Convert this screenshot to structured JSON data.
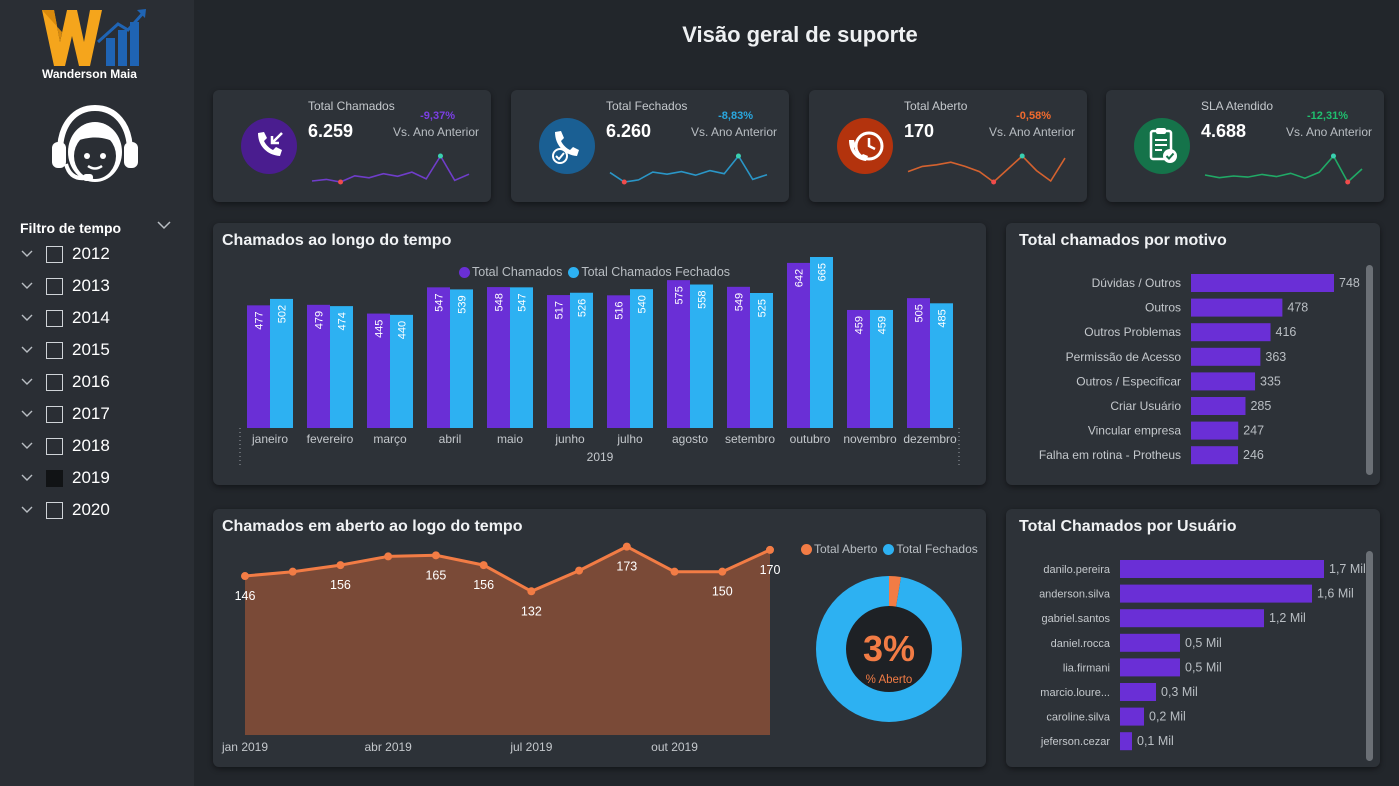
{
  "header": {
    "title": "Visão geral de suporte"
  },
  "brand": {
    "logo_text": "Wanderson Maia",
    "logo_icon": "wm-logo-icon",
    "agent_icon": "support-agent-icon"
  },
  "filter": {
    "title": "Filtro de tempo",
    "years": [
      {
        "label": "2012",
        "checked": false
      },
      {
        "label": "2013",
        "checked": false
      },
      {
        "label": "2014",
        "checked": false
      },
      {
        "label": "2015",
        "checked": false
      },
      {
        "label": "2016",
        "checked": false
      },
      {
        "label": "2017",
        "checked": false
      },
      {
        "label": "2018",
        "checked": false
      },
      {
        "label": "2019",
        "checked": true
      },
      {
        "label": "2020",
        "checked": false
      }
    ]
  },
  "kpis": [
    {
      "label": "Total Chamados",
      "value": "6.259",
      "delta": "-9,37%",
      "vs": "Vs. Ano Anterior",
      "icon": "phone-incoming-icon",
      "color": "#7b3fe4",
      "icon_bg": "#4a1d8f",
      "trend": [
        3.2,
        3.5,
        3.0,
        4.2,
        3.8,
        4.6,
        4.1,
        4.9,
        3.6,
        8.0,
        3.3,
        4.5
      ]
    },
    {
      "label": "Total Fechados",
      "value": "6.260",
      "delta": "-8,83%",
      "vs": "Vs. Ano Anterior",
      "icon": "phone-check-icon",
      "color": "#2aa8e0",
      "icon_bg": "#1a5f93",
      "trend": [
        4.8,
        3.0,
        3.4,
        4.9,
        4.5,
        5.0,
        4.3,
        5.2,
        4.6,
        8.0,
        3.5,
        4.4
      ]
    },
    {
      "label": "Total Aberto",
      "value": "170",
      "delta": "-0,58%",
      "vs": "Vs. Ano Anterior",
      "icon": "clock-phone-icon",
      "color": "#f26b2e",
      "icon_bg": "#b3330d",
      "trend": [
        5.0,
        6.0,
        6.3,
        6.8,
        6.0,
        5.0,
        3.0,
        5.5,
        8.0,
        5.2,
        3.2,
        7.6
      ]
    },
    {
      "label": "SLA Atendido",
      "value": "4.688",
      "delta": "-12,31%",
      "vs": "Vs. Ano Anterior",
      "icon": "clipboard-check-icon",
      "color": "#1fbf6e",
      "icon_bg": "#15734a",
      "trend": [
        4.5,
        4.0,
        4.3,
        4.1,
        4.6,
        4.2,
        4.8,
        3.9,
        5.0,
        8.0,
        3.2,
        5.6
      ]
    }
  ],
  "chart_data": [
    {
      "id": "chamados-tempo",
      "type": "bar",
      "title": "Chamados ao longo do tempo",
      "categories": [
        "janeiro",
        "fevereiro",
        "março",
        "abril",
        "maio",
        "junho",
        "julho",
        "agosto",
        "setembro",
        "outubro",
        "novembro",
        "dezembro"
      ],
      "x_group_label": "2019",
      "series": [
        {
          "name": "Total Chamados",
          "color": "#6a2fd6",
          "values": [
            477,
            479,
            445,
            547,
            548,
            517,
            516,
            575,
            549,
            642,
            459,
            505
          ]
        },
        {
          "name": "Total Chamados Fechados",
          "color": "#2db1f2",
          "values": [
            502,
            474,
            440,
            539,
            547,
            526,
            540,
            558,
            525,
            665,
            459,
            485
          ]
        }
      ],
      "ylim": [
        0,
        700
      ],
      "legend": "top-center"
    },
    {
      "id": "chamados-motivo",
      "type": "bar",
      "orientation": "horizontal",
      "title": "Total chamados por motivo",
      "color": "#6a2fd6",
      "categories": [
        "Dúvidas / Outros",
        "Outros",
        "Outros Problemas",
        "Permissão de Acesso",
        "Outros / Especificar",
        "Criar Usuário",
        "Vincular empresa",
        "Falha em rotina - Protheus"
      ],
      "values": [
        748,
        478,
        416,
        363,
        335,
        285,
        247,
        246
      ],
      "max": 748
    },
    {
      "id": "aberto-tempo",
      "type": "area",
      "title": "Chamados em aberto ao logo do tempo",
      "color": "#f27c45",
      "fill": "#7a4a37",
      "x": [
        "jan 2019",
        "fev 2019",
        "mar 2019",
        "abr 2019",
        "mai 2019",
        "jun 2019",
        "jul 2019",
        "ago 2019",
        "set 2019",
        "out 2019",
        "nov 2019",
        "dez 2019"
      ],
      "xticks": [
        "jan 2019",
        "abr 2019",
        "jul 2019",
        "out 2019"
      ],
      "values": [
        146,
        150,
        156,
        164,
        165,
        156,
        132,
        151,
        173,
        150,
        150,
        170
      ],
      "labels": [
        "146",
        "",
        "156",
        "",
        "165",
        "156",
        "132",
        "",
        "173",
        "",
        "150",
        "170"
      ],
      "ylim": [
        0,
        180
      ],
      "legend": "top-right"
    },
    {
      "id": "pct-aberto",
      "type": "pie",
      "style": "donut",
      "series": [
        {
          "name": "Total Aberto",
          "value": 170,
          "color": "#f27c45"
        },
        {
          "name": "Total Fechados",
          "value": 6260,
          "color": "#2db1f2"
        }
      ],
      "center_value": "3%",
      "center_label": "% Aberto"
    },
    {
      "id": "chamados-usuario",
      "type": "bar",
      "orientation": "horizontal",
      "title": "Total Chamados por Usuário",
      "color": "#6a2fd6",
      "categories": [
        "danilo.pereira",
        "anderson.silva",
        "gabriel.santos",
        "daniel.rocca",
        "lia.firmani",
        "marcio.loure...",
        "caroline.silva",
        "jeferson.cezar"
      ],
      "values": [
        1.7,
        1.6,
        1.2,
        0.5,
        0.5,
        0.3,
        0.2,
        0.1
      ],
      "value_labels": [
        "1,7 Mil",
        "1,6 Mil",
        "1,2 Mil",
        "0,5 Mil",
        "0,5 Mil",
        "0,3 Mil",
        "0,2 Mil",
        "0,1 Mil"
      ],
      "max": 1.7
    }
  ]
}
